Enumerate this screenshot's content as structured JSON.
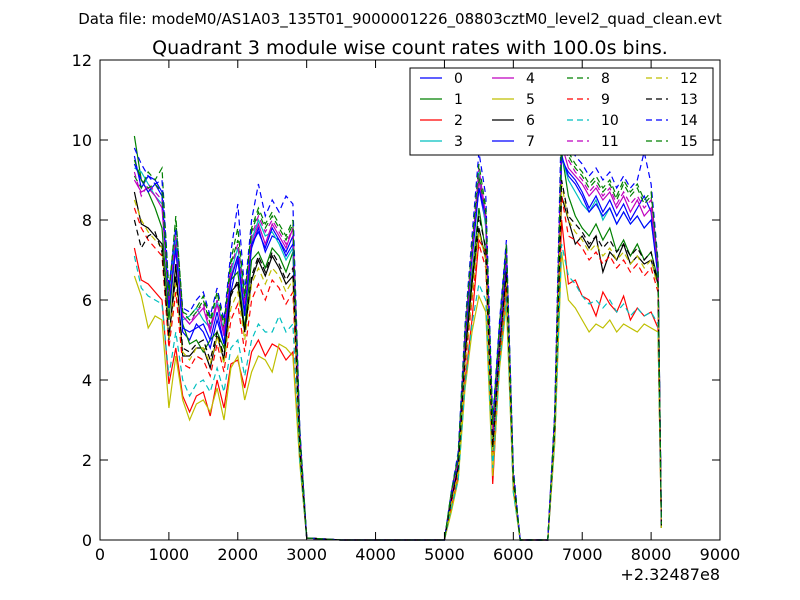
{
  "chart_data": {
    "type": "line",
    "suptitle": "Data file: modeM0/AS1A03_135T01_9000001226_08803cztM0_level2_quad_clean.evt",
    "title": "Quadrant 3 module wise count rates with 100.0s bins.",
    "xlabel": "",
    "ylabel": "",
    "x_offset_label": "+2.32487e8",
    "xlim": [
      0,
      9000
    ],
    "ylim": [
      0,
      12
    ],
    "xticks": [
      0,
      1000,
      2000,
      3000,
      4000,
      5000,
      6000,
      7000,
      8000,
      9000
    ],
    "yticks": [
      0,
      2,
      4,
      6,
      8,
      10,
      12
    ],
    "grid": false,
    "legend_position": "top-right",
    "legend_columns": 4,
    "x": [
      500,
      600,
      700,
      800,
      900,
      1000,
      1100,
      1200,
      1300,
      1400,
      1500,
      1600,
      1700,
      1800,
      1900,
      2000,
      2100,
      2200,
      2300,
      2400,
      2500,
      2600,
      2700,
      2800,
      2900,
      3000,
      3500,
      4000,
      4500,
      5000,
      5100,
      5200,
      5300,
      5400,
      5500,
      5600,
      5700,
      5800,
      5900,
      6000,
      6100,
      6200,
      6300,
      6400,
      6500,
      6600,
      6700,
      6800,
      6900,
      7000,
      7100,
      7200,
      7300,
      7400,
      7500,
      7600,
      7700,
      7800,
      7900,
      8000,
      8100,
      8150
    ],
    "series": [
      {
        "name": "0",
        "color": "#0000ff",
        "dash": "solid",
        "values": [
          9.6,
          8.8,
          9.1,
          9.0,
          8.7,
          5.9,
          7.5,
          5.2,
          5.0,
          5.4,
          5.2,
          4.8,
          5.5,
          4.9,
          6.2,
          7.0,
          5.6,
          7.3,
          7.8,
          7.2,
          7.6,
          7.5,
          7.1,
          7.4,
          2.5,
          0.05,
          0.0,
          0.0,
          0.0,
          0.0,
          1.1,
          2.0,
          5.0,
          7.0,
          8.8,
          7.9,
          2.6,
          5.0,
          7.0,
          1.6,
          0.0,
          0.0,
          0.0,
          0.0,
          0.0,
          3.0,
          9.5,
          9.2,
          9.0,
          8.7,
          8.3,
          8.6,
          8.2,
          8.5,
          8.1,
          8.4,
          8.0,
          8.3,
          8.6,
          8.2,
          6.6,
          0.4
        ]
      },
      {
        "name": "1",
        "color": "#008000",
        "dash": "solid",
        "values": [
          10.1,
          9.0,
          8.7,
          8.3,
          7.8,
          5.5,
          7.4,
          5.4,
          4.9,
          5.0,
          4.7,
          5.0,
          5.2,
          4.8,
          6.5,
          6.7,
          5.3,
          7.0,
          7.2,
          6.8,
          7.3,
          7.1,
          6.7,
          7.2,
          2.4,
          0.05,
          0.0,
          0.0,
          0.0,
          0.0,
          1.0,
          1.9,
          4.8,
          6.6,
          8.3,
          7.2,
          2.3,
          4.6,
          6.6,
          1.5,
          0.0,
          0.0,
          0.0,
          0.0,
          0.0,
          2.9,
          9.7,
          8.6,
          8.1,
          7.8,
          7.6,
          7.9,
          7.5,
          7.8,
          7.2,
          7.5,
          7.1,
          7.4,
          7.0,
          7.2,
          6.5,
          0.3
        ]
      },
      {
        "name": "2",
        "color": "#ff0000",
        "dash": "solid",
        "values": [
          7.3,
          6.5,
          6.4,
          6.2,
          6.0,
          3.9,
          4.8,
          3.6,
          3.2,
          3.6,
          3.7,
          3.1,
          4.0,
          3.3,
          4.4,
          4.5,
          3.8,
          4.7,
          5.0,
          4.6,
          4.9,
          4.8,
          4.5,
          4.7,
          2.0,
          0.05,
          0.0,
          0.0,
          0.0,
          0.0,
          0.8,
          1.6,
          4.0,
          5.5,
          7.5,
          7.2,
          1.4,
          4.5,
          6.3,
          1.3,
          0.0,
          0.0,
          0.0,
          0.0,
          0.0,
          2.5,
          8.0,
          6.4,
          6.5,
          6.1,
          6.0,
          5.6,
          6.2,
          5.9,
          5.7,
          6.1,
          5.5,
          5.8,
          5.6,
          5.7,
          5.3,
          0.3
        ]
      },
      {
        "name": "3",
        "color": "#00bfbf",
        "dash": "solid",
        "values": [
          9.3,
          9.2,
          8.9,
          8.6,
          8.4,
          6.1,
          7.6,
          5.5,
          5.6,
          5.8,
          5.5,
          5.3,
          6.0,
          5.2,
          6.7,
          7.3,
          6.0,
          7.5,
          8.0,
          7.6,
          7.7,
          7.4,
          7.0,
          7.3,
          2.5,
          0.05,
          0.0,
          0.0,
          0.0,
          0.0,
          1.1,
          2.0,
          5.1,
          7.2,
          9.2,
          7.8,
          2.8,
          5.2,
          7.1,
          1.6,
          0.0,
          0.0,
          0.0,
          0.0,
          0.0,
          3.0,
          9.6,
          9.0,
          8.7,
          8.4,
          8.2,
          8.5,
          8.0,
          8.3,
          7.9,
          8.2,
          7.9,
          8.1,
          7.8,
          8.0,
          6.7,
          0.4
        ]
      },
      {
        "name": "4",
        "color": "#bf00bf",
        "dash": "solid",
        "values": [
          9.0,
          8.7,
          8.8,
          8.6,
          8.3,
          6.0,
          7.2,
          5.6,
          5.4,
          5.6,
          5.8,
          5.2,
          5.9,
          5.1,
          6.6,
          7.1,
          5.7,
          7.4,
          7.9,
          7.4,
          7.9,
          7.6,
          7.3,
          7.8,
          2.6,
          0.05,
          0.0,
          0.0,
          0.0,
          0.0,
          1.1,
          2.0,
          5.0,
          7.1,
          9.0,
          8.0,
          2.7,
          5.1,
          7.2,
          1.6,
          0.0,
          0.0,
          0.0,
          0.0,
          0.0,
          3.0,
          9.9,
          9.3,
          9.1,
          8.9,
          8.6,
          8.8,
          8.5,
          8.7,
          8.3,
          8.6,
          8.2,
          8.5,
          8.1,
          8.3,
          6.8,
          0.4
        ]
      },
      {
        "name": "5",
        "color": "#bfbf00",
        "dash": "solid",
        "values": [
          6.6,
          6.1,
          5.3,
          5.6,
          5.5,
          3.3,
          4.6,
          3.5,
          3.0,
          3.4,
          3.5,
          3.2,
          3.8,
          3.0,
          4.3,
          4.6,
          3.5,
          4.2,
          4.6,
          4.5,
          4.2,
          4.9,
          4.8,
          4.6,
          1.9,
          0.05,
          0.0,
          0.0,
          0.0,
          0.0,
          0.7,
          1.5,
          3.8,
          5.2,
          6.1,
          5.7,
          1.6,
          4.3,
          5.9,
          1.2,
          0.0,
          0.0,
          0.0,
          0.0,
          0.0,
          2.4,
          7.2,
          6.0,
          5.8,
          5.5,
          5.2,
          5.4,
          5.3,
          5.5,
          5.2,
          5.4,
          5.3,
          5.2,
          5.4,
          5.3,
          5.2,
          0.3
        ]
      },
      {
        "name": "6",
        "color": "#000000",
        "dash": "solid",
        "values": [
          8.7,
          7.9,
          7.8,
          7.6,
          7.4,
          5.0,
          6.9,
          4.6,
          4.6,
          4.8,
          4.8,
          4.3,
          5.1,
          4.5,
          6.2,
          6.4,
          5.2,
          6.5,
          7.0,
          6.6,
          7.1,
          6.8,
          6.4,
          6.6,
          2.2,
          0.05,
          0.0,
          0.0,
          0.0,
          0.0,
          1.0,
          1.8,
          4.6,
          6.4,
          7.8,
          7.0,
          2.2,
          4.7,
          6.6,
          1.5,
          0.0,
          0.0,
          0.0,
          0.0,
          0.0,
          2.8,
          8.6,
          8.0,
          7.4,
          7.6,
          7.3,
          7.6,
          6.7,
          7.2,
          7.0,
          7.4,
          6.9,
          7.1,
          6.9,
          7.0,
          6.4,
          0.3
        ]
      },
      {
        "name": "7",
        "color": "#0000ff",
        "dash": "solid",
        "values": [
          9.4,
          9.0,
          8.7,
          8.9,
          8.6,
          5.8,
          7.3,
          5.3,
          5.2,
          5.3,
          5.4,
          5.0,
          5.7,
          4.9,
          6.5,
          7.1,
          5.7,
          7.4,
          7.7,
          7.3,
          7.8,
          7.5,
          7.2,
          7.6,
          2.5,
          0.05,
          0.0,
          0.0,
          0.0,
          0.0,
          1.1,
          2.0,
          5.0,
          7.1,
          8.8,
          8.1,
          2.6,
          5.1,
          7.1,
          1.6,
          0.0,
          0.0,
          0.0,
          0.0,
          0.0,
          3.0,
          9.6,
          9.1,
          8.9,
          8.6,
          8.2,
          8.4,
          8.1,
          8.3,
          7.9,
          8.2,
          7.9,
          8.1,
          7.8,
          8.0,
          6.6,
          0.4
        ]
      },
      {
        "name": "8",
        "color": "#008000",
        "dash": "dashed",
        "values": [
          9.1,
          8.8,
          9.2,
          9.0,
          9.3,
          6.2,
          8.0,
          5.7,
          5.5,
          5.7,
          6.0,
          5.4,
          6.2,
          5.3,
          6.9,
          7.5,
          6.0,
          7.7,
          8.2,
          7.8,
          8.1,
          7.8,
          7.5,
          7.9,
          2.7,
          0.05,
          0.0,
          0.0,
          0.0,
          0.0,
          1.2,
          2.1,
          5.2,
          7.3,
          9.1,
          8.2,
          2.8,
          5.3,
          7.3,
          1.7,
          0.0,
          0.0,
          0.0,
          0.0,
          0.0,
          3.1,
          10.0,
          9.6,
          9.3,
          9.1,
          8.8,
          9.0,
          8.7,
          8.9,
          8.5,
          8.9,
          8.6,
          8.8,
          8.4,
          8.6,
          6.9,
          0.4
        ]
      },
      {
        "name": "9",
        "color": "#ff0000",
        "dash": "dashed",
        "values": [
          8.3,
          7.8,
          7.5,
          7.3,
          7.1,
          4.8,
          6.2,
          4.4,
          4.3,
          4.6,
          4.5,
          4.1,
          4.9,
          4.2,
          5.5,
          5.9,
          4.7,
          6.0,
          6.4,
          6.0,
          6.5,
          6.3,
          5.9,
          6.2,
          2.2,
          0.05,
          0.0,
          0.0,
          0.0,
          0.0,
          0.9,
          1.7,
          4.3,
          6.0,
          7.4,
          6.8,
          2.0,
          4.6,
          6.4,
          1.4,
          0.0,
          0.0,
          0.0,
          0.0,
          0.0,
          2.7,
          8.6,
          7.6,
          7.5,
          7.3,
          7.0,
          7.2,
          6.9,
          7.1,
          6.8,
          7.0,
          6.7,
          6.9,
          6.6,
          6.8,
          6.2,
          0.3
        ]
      },
      {
        "name": "10",
        "color": "#00bfbf",
        "dash": "dashed",
        "values": [
          7.1,
          6.3,
          6.1,
          6.0,
          5.9,
          4.1,
          5.2,
          4.0,
          3.6,
          3.9,
          4.0,
          3.7,
          4.3,
          3.7,
          4.8,
          5.0,
          4.1,
          5.0,
          5.4,
          5.2,
          5.2,
          5.6,
          5.2,
          5.4,
          2.0,
          0.05,
          0.0,
          0.0,
          0.0,
          0.0,
          0.8,
          1.5,
          3.9,
          5.4,
          6.4,
          6.0,
          1.8,
          4.4,
          6.1,
          1.2,
          0.0,
          0.0,
          0.0,
          0.0,
          0.0,
          2.5,
          7.4,
          6.6,
          6.4,
          6.1,
          5.9,
          6.0,
          5.8,
          6.0,
          5.7,
          5.9,
          5.6,
          5.8,
          5.6,
          5.7,
          5.4,
          0.3
        ]
      },
      {
        "name": "11",
        "color": "#bf00bf",
        "dash": "dashed",
        "values": [
          9.2,
          8.6,
          8.9,
          8.7,
          8.5,
          6.0,
          7.6,
          5.6,
          5.4,
          5.7,
          5.9,
          5.3,
          6.0,
          5.2,
          6.8,
          7.4,
          5.9,
          7.6,
          8.1,
          7.7,
          8.0,
          7.7,
          7.4,
          7.8,
          2.6,
          0.05,
          0.0,
          0.0,
          0.0,
          0.0,
          1.1,
          2.0,
          5.1,
          7.2,
          9.3,
          8.1,
          2.7,
          5.2,
          7.2,
          1.6,
          0.0,
          0.0,
          0.0,
          0.0,
          0.0,
          3.0,
          10.3,
          9.5,
          9.2,
          9.0,
          8.7,
          8.9,
          8.6,
          8.8,
          8.4,
          8.7,
          8.4,
          8.6,
          8.3,
          8.5,
          6.8,
          0.4
        ]
      },
      {
        "name": "12",
        "color": "#bfbf00",
        "dash": "dashed",
        "values": [
          8.5,
          8.0,
          7.7,
          7.5,
          7.3,
          5.0,
          6.5,
          4.7,
          4.5,
          4.8,
          4.8,
          4.4,
          5.1,
          4.4,
          5.8,
          6.2,
          5.0,
          6.4,
          6.8,
          6.4,
          6.8,
          6.6,
          6.2,
          6.5,
          2.3,
          0.05,
          0.0,
          0.0,
          0.0,
          0.0,
          0.9,
          1.7,
          4.4,
          6.1,
          7.7,
          7.0,
          2.1,
          4.7,
          6.5,
          1.4,
          0.0,
          0.0,
          0.0,
          0.0,
          0.0,
          2.7,
          8.9,
          8.0,
          7.7,
          7.5,
          7.2,
          7.4,
          7.1,
          7.3,
          7.0,
          7.2,
          6.9,
          7.1,
          6.8,
          7.0,
          6.3,
          0.3
        ]
      },
      {
        "name": "13",
        "color": "#000000",
        "dash": "dashed",
        "values": [
          8.0,
          7.3,
          7.6,
          7.7,
          7.2,
          5.1,
          6.6,
          4.8,
          4.7,
          4.9,
          5.0,
          4.5,
          5.2,
          4.6,
          6.1,
          6.5,
          5.2,
          6.6,
          7.1,
          6.7,
          7.2,
          6.9,
          6.5,
          6.8,
          2.3,
          0.05,
          0.0,
          0.0,
          0.0,
          0.0,
          1.0,
          1.8,
          4.6,
          6.4,
          8.1,
          7.3,
          2.3,
          4.8,
          6.7,
          1.5,
          0.0,
          0.0,
          0.0,
          0.0,
          0.0,
          2.8,
          9.0,
          8.1,
          7.9,
          7.7,
          7.4,
          7.6,
          7.3,
          7.5,
          7.2,
          7.4,
          7.1,
          7.3,
          7.0,
          7.2,
          6.4,
          0.3
        ]
      },
      {
        "name": "14",
        "color": "#0000ff",
        "dash": "dashed",
        "values": [
          9.8,
          9.4,
          9.1,
          8.9,
          9.0,
          6.3,
          7.8,
          5.8,
          5.7,
          6.0,
          6.2,
          5.6,
          6.3,
          5.5,
          7.2,
          8.4,
          6.2,
          8.0,
          8.9,
          8.1,
          8.5,
          8.2,
          8.6,
          8.4,
          2.8,
          0.05,
          0.0,
          0.0,
          0.0,
          0.0,
          1.2,
          2.2,
          5.4,
          7.6,
          9.7,
          8.6,
          3.0,
          5.5,
          7.5,
          1.8,
          0.0,
          0.0,
          0.0,
          0.0,
          0.0,
          3.2,
          10.8,
          9.9,
          9.6,
          9.4,
          9.1,
          9.3,
          9.0,
          9.2,
          8.8,
          9.1,
          8.8,
          9.0,
          9.7,
          8.9,
          7.0,
          0.4
        ]
      },
      {
        "name": "15",
        "color": "#008000",
        "dash": "dashed",
        "values": [
          9.5,
          9.0,
          8.8,
          8.9,
          8.7,
          6.1,
          8.1,
          5.7,
          5.6,
          5.8,
          6.1,
          5.5,
          6.2,
          5.4,
          7.0,
          7.8,
          6.1,
          7.8,
          8.3,
          7.9,
          8.2,
          7.9,
          7.6,
          8.0,
          2.7,
          0.05,
          0.0,
          0.0,
          0.0,
          0.0,
          1.2,
          2.1,
          5.3,
          7.4,
          9.4,
          8.3,
          2.9,
          5.4,
          7.4,
          1.7,
          0.0,
          0.0,
          0.0,
          0.0,
          0.0,
          3.1,
          10.2,
          9.7,
          9.4,
          9.2,
          8.9,
          9.1,
          8.8,
          9.0,
          8.6,
          9.0,
          8.7,
          8.9,
          8.5,
          8.7,
          6.9,
          0.4
        ]
      }
    ]
  }
}
